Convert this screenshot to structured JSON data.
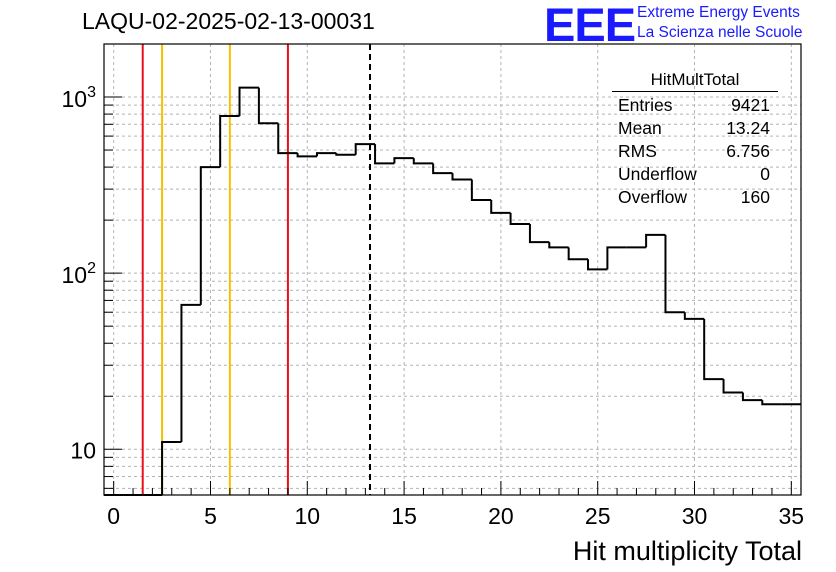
{
  "header": {
    "run_title": "LAQU-02-2025-02-13-00031",
    "logo_text": "EEE",
    "logo_line1": "Extreme Energy Events",
    "logo_line2": "La Scienza nelle Scuole",
    "logo_color": "#1a1aff"
  },
  "stats": {
    "title": "HitMultTotal",
    "rows": [
      {
        "label": "Entries",
        "value": "9421"
      },
      {
        "label": "Mean",
        "value": "13.24"
      },
      {
        "label": "RMS",
        "value": "6.756"
      },
      {
        "label": "Underflow",
        "value": "0"
      },
      {
        "label": "Overflow",
        "value": "160"
      }
    ]
  },
  "chart_data": {
    "type": "histogram",
    "xlabel": "Hit multiplicity Total",
    "ylabel": "",
    "xlim": [
      -0.5,
      35.5
    ],
    "ylim": [
      5.5,
      2000
    ],
    "yscale": "log",
    "grid": true,
    "x_ticks": [
      0,
      5,
      10,
      15,
      20,
      25,
      30,
      35
    ],
    "y_tick_labels": [
      "10",
      "10^2",
      "10^3"
    ],
    "bin_edges": [
      -0.5,
      0.5,
      1.5,
      2.5,
      3.5,
      4.5,
      5.5,
      6.5,
      7.5,
      8.5,
      9.5,
      10.5,
      11.5,
      12.5,
      13.5,
      14.5,
      15.5,
      16.5,
      17.5,
      18.5,
      19.5,
      20.5,
      21.5,
      22.5,
      23.5,
      24.5,
      25.5,
      26.5,
      27.5,
      28.5,
      29.5,
      30.5,
      31.5,
      32.5,
      33.5,
      34.5,
      35.5
    ],
    "counts": [
      0,
      0,
      0,
      11,
      66,
      400,
      780,
      1130,
      710,
      480,
      460,
      480,
      470,
      540,
      420,
      450,
      420,
      370,
      340,
      260,
      220,
      190,
      150,
      140,
      120,
      105,
      140,
      140,
      165,
      60,
      55,
      25,
      21,
      19,
      18,
      18
    ],
    "histogram_color": "#000000",
    "vertical_lines": [
      {
        "x": 1.5,
        "color": "#e8101a",
        "style": "solid"
      },
      {
        "x": 2.5,
        "color": "#f5c000",
        "style": "solid"
      },
      {
        "x": 6.0,
        "color": "#f5c000",
        "style": "solid"
      },
      {
        "x": 9.0,
        "color": "#e8101a",
        "style": "solid"
      },
      {
        "x": 13.24,
        "color": "#000000",
        "style": "dashed"
      }
    ]
  }
}
